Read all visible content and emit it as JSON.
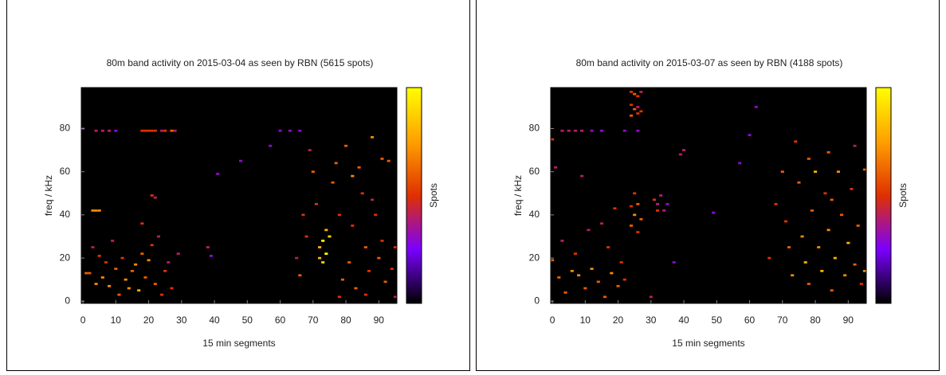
{
  "chart_data": [
    {
      "type": "heatmap",
      "title": "80m band activity on 2015-03-04 as seen by RBN (5615 spots)",
      "xlabel": "15 min segments",
      "ylabel": "freq / kHz",
      "colorbar_label": "Spots",
      "xlim": [
        -0.5,
        95.5
      ],
      "ylim": [
        -1,
        99
      ],
      "xticks": [
        0,
        10,
        20,
        30,
        40,
        50,
        60,
        70,
        80,
        90
      ],
      "yticks": [
        0,
        20,
        40,
        60,
        80
      ],
      "zlim": [
        0,
        10
      ],
      "colormap": [
        "#000000",
        "#7a00ff",
        "#e03000",
        "#ffa000",
        "#ffff00"
      ],
      "cells": [
        [
          0,
          80,
          3
        ],
        [
          4,
          79,
          4
        ],
        [
          6,
          79,
          4
        ],
        [
          8,
          79,
          4
        ],
        [
          10,
          79,
          3
        ],
        [
          18,
          79,
          5
        ],
        [
          19,
          79,
          5
        ],
        [
          20,
          79,
          5
        ],
        [
          21,
          79,
          5
        ],
        [
          22,
          79,
          5
        ],
        [
          24,
          79,
          4
        ],
        [
          25,
          79,
          5
        ],
        [
          27,
          79,
          6
        ],
        [
          28,
          79,
          4
        ],
        [
          3,
          42,
          7
        ],
        [
          4,
          42,
          7
        ],
        [
          5,
          42,
          7
        ],
        [
          21,
          49,
          5
        ],
        [
          22,
          48,
          4
        ],
        [
          1,
          13,
          6
        ],
        [
          2,
          13,
          6
        ],
        [
          4,
          8,
          7
        ],
        [
          6,
          11,
          7
        ],
        [
          8,
          7,
          7
        ],
        [
          10,
          15,
          6
        ],
        [
          12,
          20,
          5
        ],
        [
          14,
          6,
          7
        ],
        [
          15,
          14,
          6
        ],
        [
          16,
          17,
          7
        ],
        [
          17,
          5,
          8
        ],
        [
          18,
          22,
          6
        ],
        [
          19,
          11,
          6
        ],
        [
          20,
          19,
          7
        ],
        [
          22,
          8,
          6
        ],
        [
          24,
          3,
          5
        ],
        [
          25,
          14,
          5
        ],
        [
          26,
          18,
          4
        ],
        [
          3,
          25,
          4
        ],
        [
          7,
          18,
          5
        ],
        [
          11,
          3,
          6
        ],
        [
          13,
          10,
          7
        ],
        [
          9,
          28,
          4
        ],
        [
          5,
          21,
          5
        ],
        [
          21,
          26,
          5
        ],
        [
          23,
          30,
          4
        ],
        [
          27,
          6,
          5
        ],
        [
          18,
          36,
          5
        ],
        [
          29,
          22,
          4
        ],
        [
          38,
          25,
          4
        ],
        [
          39,
          21,
          3
        ],
        [
          65,
          20,
          4
        ],
        [
          66,
          12,
          6
        ],
        [
          68,
          30,
          5
        ],
        [
          70,
          60,
          6
        ],
        [
          71,
          45,
          5
        ],
        [
          72,
          25,
          8
        ],
        [
          73,
          28,
          10
        ],
        [
          74,
          22,
          10
        ],
        [
          73,
          18,
          9
        ],
        [
          75,
          30,
          9
        ],
        [
          74,
          33,
          8
        ],
        [
          72,
          20,
          8
        ],
        [
          76,
          55,
          6
        ],
        [
          77,
          64,
          6
        ],
        [
          78,
          40,
          5
        ],
        [
          79,
          10,
          6
        ],
        [
          80,
          72,
          6
        ],
        [
          81,
          18,
          6
        ],
        [
          82,
          35,
          5
        ],
        [
          83,
          6,
          6
        ],
        [
          84,
          62,
          6
        ],
        [
          85,
          50,
          5
        ],
        [
          86,
          25,
          6
        ],
        [
          87,
          14,
          5
        ],
        [
          88,
          76,
          7
        ],
        [
          89,
          40,
          5
        ],
        [
          90,
          20,
          6
        ],
        [
          91,
          28,
          5
        ],
        [
          92,
          9,
          6
        ],
        [
          93,
          65,
          6
        ],
        [
          94,
          15,
          5
        ],
        [
          95,
          25,
          5
        ],
        [
          69,
          70,
          4
        ],
        [
          67,
          40,
          5
        ],
        [
          78,
          2,
          5
        ],
        [
          86,
          3,
          5
        ],
        [
          82,
          58,
          7
        ],
        [
          88,
          47,
          4
        ],
        [
          91,
          66,
          6
        ],
        [
          95,
          2,
          4
        ],
        [
          60,
          79,
          3
        ],
        [
          63,
          79,
          3
        ],
        [
          66,
          79,
          3
        ],
        [
          57,
          72,
          3
        ],
        [
          48,
          65,
          3
        ],
        [
          41,
          59,
          3
        ]
      ]
    },
    {
      "type": "heatmap",
      "title": "80m band activity on 2015-03-07 as seen by RBN (4188 spots)",
      "xlabel": "15 min segments",
      "ylabel": "freq / kHz",
      "colorbar_label": "Spots",
      "xlim": [
        -0.5,
        95.5
      ],
      "ylim": [
        -1,
        99
      ],
      "xticks": [
        0,
        10,
        20,
        30,
        40,
        50,
        60,
        70,
        80,
        90
      ],
      "yticks": [
        0,
        20,
        40,
        60,
        80
      ],
      "zlim": [
        0,
        10
      ],
      "colormap": [
        "#000000",
        "#7a00ff",
        "#e03000",
        "#ffa000",
        "#ffff00"
      ],
      "cells": [
        [
          24,
          97,
          5
        ],
        [
          25,
          96,
          6
        ],
        [
          26,
          95,
          5
        ],
        [
          27,
          97,
          4
        ],
        [
          24,
          91,
          5
        ],
        [
          25,
          89,
          6
        ],
        [
          26,
          90,
          4
        ],
        [
          27,
          88,
          5
        ],
        [
          24,
          86,
          6
        ],
        [
          26,
          87,
          5
        ],
        [
          24,
          35,
          6
        ],
        [
          25,
          40,
          7
        ],
        [
          26,
          45,
          6
        ],
        [
          25,
          50,
          5
        ],
        [
          27,
          38,
          6
        ],
        [
          24,
          44,
          5
        ],
        [
          26,
          32,
          5
        ],
        [
          31,
          47,
          5
        ],
        [
          32,
          45,
          4
        ],
        [
          33,
          49,
          4
        ],
        [
          34,
          42,
          4
        ],
        [
          35,
          45,
          3
        ],
        [
          32,
          42,
          5
        ],
        [
          0,
          75,
          5
        ],
        [
          3,
          79,
          4
        ],
        [
          5,
          79,
          4
        ],
        [
          7,
          79,
          4
        ],
        [
          9,
          79,
          4
        ],
        [
          12,
          79,
          3
        ],
        [
          15,
          79,
          3
        ],
        [
          22,
          79,
          3
        ],
        [
          26,
          79,
          3
        ],
        [
          0,
          19,
          6
        ],
        [
          2,
          11,
          6
        ],
        [
          4,
          4,
          6
        ],
        [
          6,
          14,
          7
        ],
        [
          8,
          12,
          7
        ],
        [
          10,
          6,
          6
        ],
        [
          12,
          15,
          7
        ],
        [
          14,
          9,
          6
        ],
        [
          16,
          2,
          6
        ],
        [
          18,
          13,
          7
        ],
        [
          20,
          7,
          6
        ],
        [
          22,
          10,
          5
        ],
        [
          3,
          28,
          4
        ],
        [
          7,
          22,
          5
        ],
        [
          11,
          33,
          4
        ],
        [
          17,
          25,
          5
        ],
        [
          21,
          18,
          5
        ],
        [
          19,
          43,
          5
        ],
        [
          15,
          36,
          4
        ],
        [
          9,
          58,
          4
        ],
        [
          1,
          62,
          4
        ],
        [
          66,
          20,
          5
        ],
        [
          68,
          45,
          5
        ],
        [
          70,
          60,
          6
        ],
        [
          72,
          25,
          6
        ],
        [
          73,
          12,
          7
        ],
        [
          75,
          55,
          6
        ],
        [
          76,
          30,
          7
        ],
        [
          77,
          18,
          8
        ],
        [
          78,
          8,
          6
        ],
        [
          79,
          42,
          6
        ],
        [
          80,
          60,
          8
        ],
        [
          81,
          25,
          7
        ],
        [
          82,
          14,
          8
        ],
        [
          83,
          50,
          5
        ],
        [
          84,
          33,
          7
        ],
        [
          85,
          5,
          6
        ],
        [
          86,
          20,
          8
        ],
        [
          87,
          60,
          7
        ],
        [
          88,
          40,
          6
        ],
        [
          89,
          12,
          7
        ],
        [
          90,
          27,
          8
        ],
        [
          91,
          52,
          5
        ],
        [
          92,
          17,
          6
        ],
        [
          93,
          35,
          6
        ],
        [
          94,
          8,
          5
        ],
        [
          95,
          61,
          6
        ],
        [
          95,
          14,
          7
        ],
        [
          74,
          74,
          5
        ],
        [
          78,
          66,
          6
        ],
        [
          84,
          69,
          6
        ],
        [
          92,
          72,
          4
        ],
        [
          71,
          37,
          5
        ],
        [
          85,
          47,
          6
        ],
        [
          60,
          77,
          3
        ],
        [
          62,
          90,
          3
        ],
        [
          57,
          64,
          3
        ],
        [
          49,
          41,
          3
        ],
        [
          40,
          70,
          4
        ],
        [
          39,
          68,
          4
        ],
        [
          37,
          18,
          3
        ],
        [
          30,
          2,
          4
        ]
      ]
    }
  ]
}
